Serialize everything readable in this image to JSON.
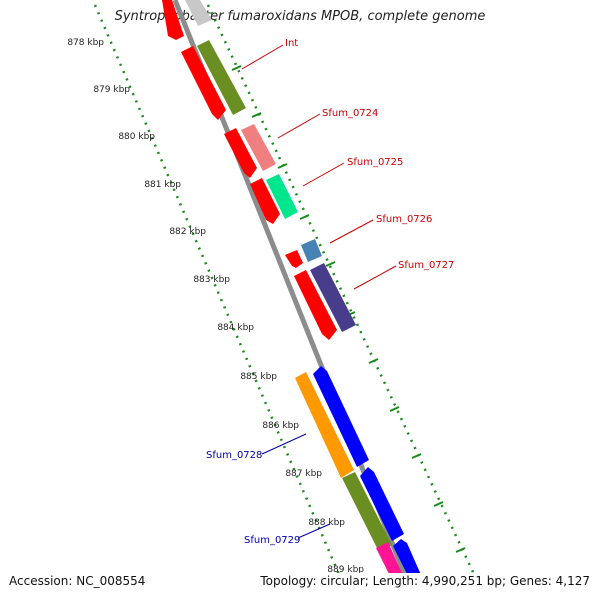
{
  "title": "Syntrophobacter fumaroxidans MPOB, complete genome",
  "accession": "Accession: NC_008554",
  "topology_info": "Topology: circular; Length: 4,990,251 bp; Genes: 4,127",
  "ticks": [
    "878 kbp",
    "879 kbp",
    "880 kbp",
    "881 kbp",
    "882 kbp",
    "883 kbp",
    "884 kbp",
    "885 kbp",
    "886 kbp",
    "887 kbp",
    "888 kbp",
    "889 kbp"
  ],
  "labels": {
    "int": "Int",
    "sfum_0724": "Sfum_0724",
    "sfum_0725": "Sfum_0725",
    "sfum_0726": "Sfum_0726",
    "sfum_0727": "Sfum_0727",
    "sfum_0728": "Sfum_0728",
    "sfum_0729": "Sfum_0729"
  },
  "colors": {
    "backbone": "#8c8c8c",
    "forward_label": "#cc0000",
    "reverse_label": "#0000aa",
    "dotted_guides": "#1a8a1a",
    "red": "#ff0000",
    "olive": "#6b8e23",
    "pink": "#f08080",
    "mint": "#00e68c",
    "steel": "#4682b4",
    "purple": "#483d8b",
    "orange": "#ff9900",
    "blue": "#0000ff",
    "magenta": "#ff1493",
    "gray": "#b0b0b0"
  }
}
